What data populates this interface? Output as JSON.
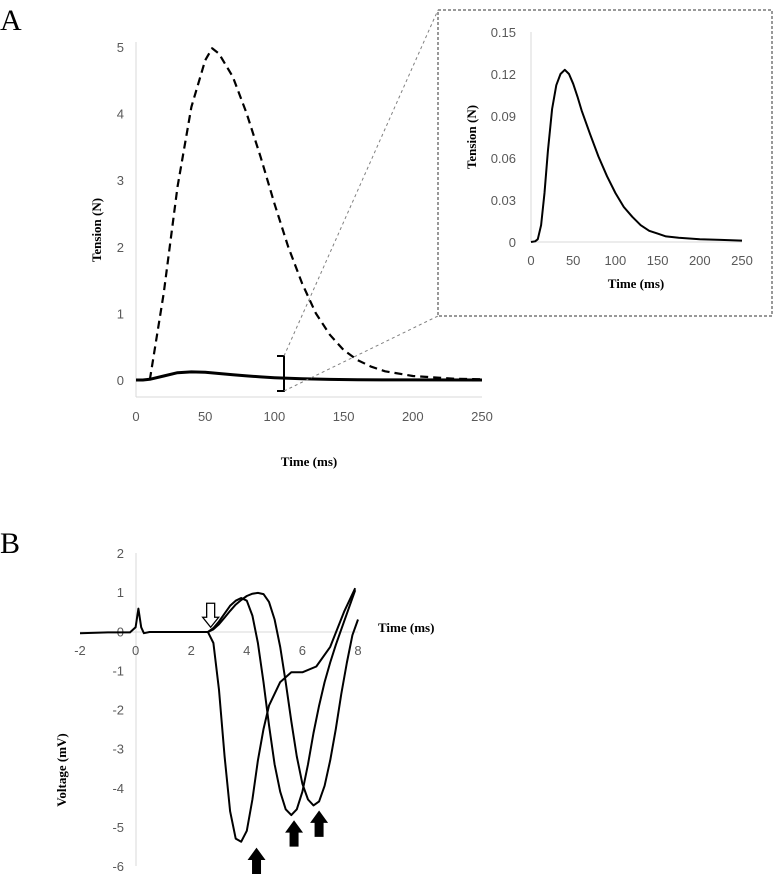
{
  "figure": {
    "panel_a_label": "A",
    "panel_b_label": "B"
  },
  "chart_data": [
    {
      "id": "A-main",
      "type": "line",
      "xlabel": "Time (ms)",
      "ylabel": "Tension (N)",
      "xlim": [
        0,
        250
      ],
      "ylim": [
        0,
        5
      ],
      "xticks": [
        0,
        50,
        100,
        150,
        200,
        250
      ],
      "yticks": [
        0,
        1,
        2,
        3,
        4,
        5
      ],
      "series": [
        {
          "name": "dashed",
          "style": "dashed",
          "x": [
            10,
            20,
            30,
            40,
            50,
            55,
            60,
            70,
            80,
            90,
            100,
            110,
            120,
            130,
            140,
            150,
            160,
            170,
            180,
            200,
            230,
            250
          ],
          "y": [
            0.0,
            1.3,
            2.9,
            4.1,
            4.8,
            4.98,
            4.9,
            4.55,
            4.0,
            3.35,
            2.65,
            2.0,
            1.45,
            1.0,
            0.68,
            0.45,
            0.3,
            0.2,
            0.13,
            0.06,
            0.02,
            0.01
          ]
        },
        {
          "name": "solid",
          "style": "solid",
          "x": [
            0,
            5,
            10,
            20,
            30,
            40,
            50,
            60,
            70,
            80,
            90,
            100,
            120,
            140,
            160,
            180,
            200,
            250
          ],
          "y": [
            0,
            0.0,
            0.01,
            0.06,
            0.11,
            0.122,
            0.115,
            0.098,
            0.08,
            0.062,
            0.047,
            0.034,
            0.018,
            0.009,
            0.004,
            0.002,
            0.001,
            0.0
          ]
        }
      ]
    },
    {
      "id": "A-inset",
      "type": "line",
      "xlabel": "Time (ms)",
      "ylabel": "Tension (N)",
      "xlim": [
        0,
        250
      ],
      "ylim": [
        0,
        0.15
      ],
      "xticks": [
        0,
        50,
        100,
        150,
        200,
        250
      ],
      "yticks": [
        0,
        0.03,
        0.06,
        0.09,
        0.12,
        0.15
      ],
      "series": [
        {
          "name": "solid",
          "x": [
            0,
            5,
            8,
            12,
            16,
            20,
            25,
            30,
            35,
            40,
            45,
            50,
            55,
            60,
            70,
            80,
            90,
            100,
            110,
            120,
            130,
            140,
            150,
            160,
            175,
            200,
            225,
            250
          ],
          "y": [
            0,
            0.0005,
            0.002,
            0.012,
            0.035,
            0.065,
            0.095,
            0.112,
            0.12,
            0.123,
            0.12,
            0.113,
            0.104,
            0.094,
            0.077,
            0.061,
            0.047,
            0.035,
            0.025,
            0.018,
            0.012,
            0.008,
            0.006,
            0.004,
            0.003,
            0.002,
            0.0015,
            0.001
          ]
        }
      ]
    },
    {
      "id": "B",
      "type": "line",
      "xlabel": "Time (ms)",
      "ylabel": "Voltage (mV)",
      "xlim": [
        -2,
        8
      ],
      "ylim": [
        -6,
        2
      ],
      "xticks": [
        -2,
        0,
        2,
        4,
        6,
        8
      ],
      "yticks": [
        2,
        1,
        0,
        -1,
        -2,
        -3,
        -4,
        -5,
        -6
      ],
      "series": [
        {
          "name": "trace-1",
          "x": [
            -2,
            -1,
            -0.2,
            0.0,
            0.1,
            0.2,
            0.3,
            0.5,
            1,
            2,
            2.6,
            2.8,
            3.0,
            3.2,
            3.4,
            3.6,
            3.8,
            4.0,
            4.2,
            4.4,
            4.6,
            4.8,
            5.2,
            5.6,
            6.0,
            6.5,
            7.0,
            7.5,
            7.9
          ],
          "y": [
            -0.05,
            -0.03,
            -0.03,
            0.1,
            0.58,
            0.1,
            -0.05,
            -0.02,
            -0.02,
            -0.02,
            -0.02,
            -0.3,
            -1.5,
            -3.2,
            -4.6,
            -5.3,
            -5.38,
            -5.1,
            -4.3,
            -3.3,
            -2.5,
            -1.9,
            -1.3,
            -1.05,
            -1.05,
            -0.9,
            -0.4,
            0.5,
            1.1
          ]
        },
        {
          "name": "trace-2",
          "x": [
            2.6,
            2.8,
            3.0,
            3.2,
            3.4,
            3.6,
            3.8,
            4.0,
            4.2,
            4.4,
            4.6,
            4.8,
            5.0,
            5.2,
            5.4,
            5.6,
            5.8,
            6.0,
            6.2,
            6.4,
            6.6,
            6.8,
            7.0,
            7.2,
            7.4,
            7.6,
            7.9
          ],
          "y": [
            -0.02,
            0.08,
            0.25,
            0.45,
            0.65,
            0.78,
            0.85,
            0.78,
            0.4,
            -0.3,
            -1.3,
            -2.4,
            -3.4,
            -4.1,
            -4.55,
            -4.7,
            -4.55,
            -4.1,
            -3.4,
            -2.6,
            -1.9,
            -1.3,
            -0.8,
            -0.35,
            0.05,
            0.45,
            1.05
          ]
        },
        {
          "name": "trace-3",
          "x": [
            2.6,
            2.8,
            3.0,
            3.2,
            3.4,
            3.6,
            3.8,
            4.0,
            4.2,
            4.4,
            4.6,
            4.8,
            5.0,
            5.2,
            5.4,
            5.6,
            5.8,
            6.0,
            6.2,
            6.4,
            6.6,
            6.8,
            7.0,
            7.2,
            7.4,
            7.6,
            7.8,
            8.0
          ],
          "y": [
            -0.02,
            0.05,
            0.18,
            0.35,
            0.52,
            0.68,
            0.8,
            0.9,
            0.96,
            0.98,
            0.95,
            0.75,
            0.3,
            -0.4,
            -1.3,
            -2.3,
            -3.2,
            -3.9,
            -4.3,
            -4.45,
            -4.35,
            -3.95,
            -3.3,
            -2.5,
            -1.6,
            -0.8,
            -0.1,
            0.3
          ]
        }
      ],
      "annotations": {
        "open_arrow_x": 2.7,
        "filled_arrows": [
          {
            "x": 4.35,
            "y": -5.4
          },
          {
            "x": 5.7,
            "y": -4.7
          },
          {
            "x": 6.6,
            "y": -4.45
          }
        ]
      }
    }
  ]
}
